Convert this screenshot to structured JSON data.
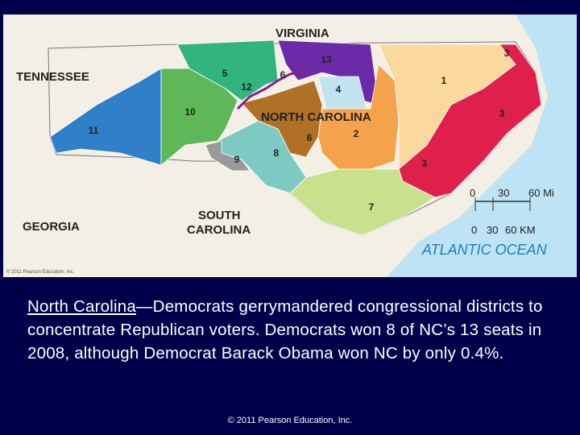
{
  "map": {
    "states": {
      "virginia": "VIRGINIA",
      "tennessee": "TENNESSEE",
      "north_carolina": "NORTH CAROLINA",
      "georgia": "GEORGIA",
      "south_carolina": [
        "SOUTH",
        "CAROLINA"
      ]
    },
    "district_labels": [
      "3",
      "13",
      "5",
      "6",
      "12",
      "4",
      "1",
      "10",
      "3",
      "11",
      "2",
      "6",
      "8",
      "9",
      "3",
      "7"
    ],
    "scale": {
      "miles": [
        "0",
        "30",
        "60 Mi"
      ],
      "km": [
        "0",
        "30",
        "60 KM"
      ]
    },
    "ocean": "ATLANTIC OCEAN",
    "credit": "© 2011 Pearson Education, Inc."
  },
  "caption": {
    "link": "North Carolina",
    "text": "—Democrats gerrymandered congressional districts to concentrate Republican voters. Democrats won 8 of NC’s 13 seats in 2008, although Democrat Barack Obama won NC by only 0.4%."
  },
  "footer": "© 2011 Pearson Education, Inc."
}
